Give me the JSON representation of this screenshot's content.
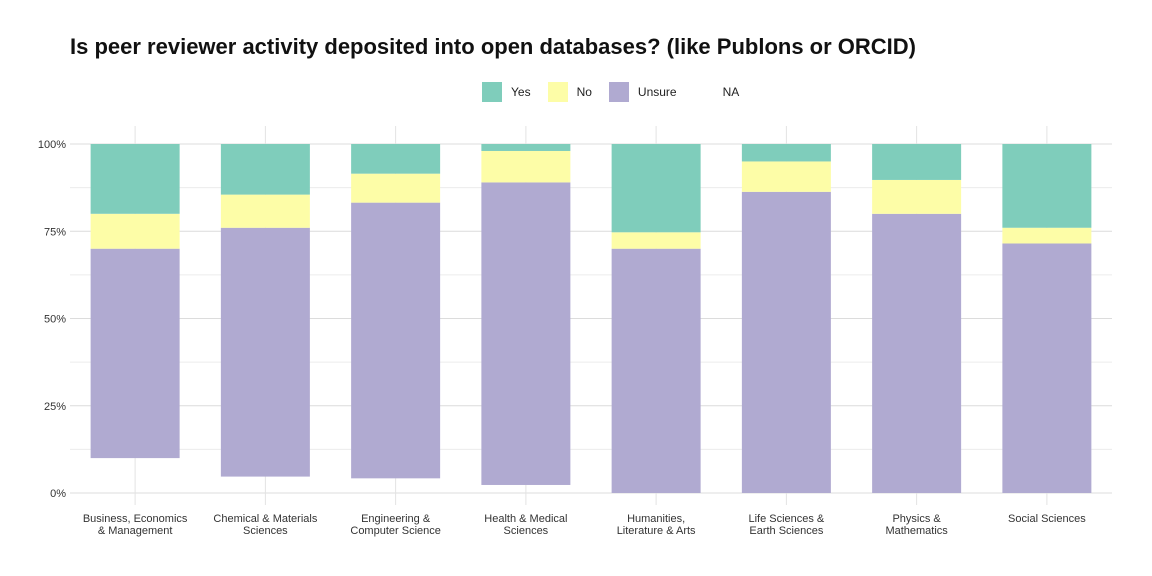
{
  "chart_data": {
    "type": "bar",
    "stacked": true,
    "title": "Is peer reviewer activity deposited into open databases? (like Publons or ORCID)",
    "categories": [
      [
        "Business, Economics",
        "& Management"
      ],
      [
        "Chemical & Materials",
        "Sciences"
      ],
      [
        "Engineering &",
        "Computer Science"
      ],
      [
        "Health & Medical",
        "Sciences"
      ],
      [
        "Humanities,",
        "Literature & Arts"
      ],
      [
        "Life Sciences &",
        "Earth Sciences"
      ],
      [
        "Physics &",
        "Mathematics"
      ],
      [
        "Social Sciences"
      ]
    ],
    "series": [
      {
        "name": "NA",
        "color": null,
        "values": [
          10,
          4.7,
          4.2,
          2.3,
          0,
          0,
          0,
          0
        ]
      },
      {
        "name": "Unsure",
        "color": "#b0aad1",
        "values": [
          60,
          71.3,
          79,
          86.7,
          70,
          86.3,
          80,
          71.5
        ]
      },
      {
        "name": "No",
        "color": "#fdfda7",
        "values": [
          10,
          9.5,
          8.3,
          9,
          4.7,
          8.7,
          9.7,
          4.5
        ]
      },
      {
        "name": "Yes",
        "color": "#7fcdbb",
        "values": [
          20,
          14.5,
          8.5,
          2,
          25.3,
          5,
          10.3,
          24
        ]
      }
    ],
    "legend_order": [
      "Yes",
      "No",
      "Unsure",
      "NA"
    ],
    "ylim": [
      0,
      100
    ],
    "yticks": [
      "0%",
      "25%",
      "50%",
      "75%",
      "100%"
    ],
    "xlabel": "",
    "ylabel": "",
    "grid": true,
    "legend_position": "top"
  }
}
